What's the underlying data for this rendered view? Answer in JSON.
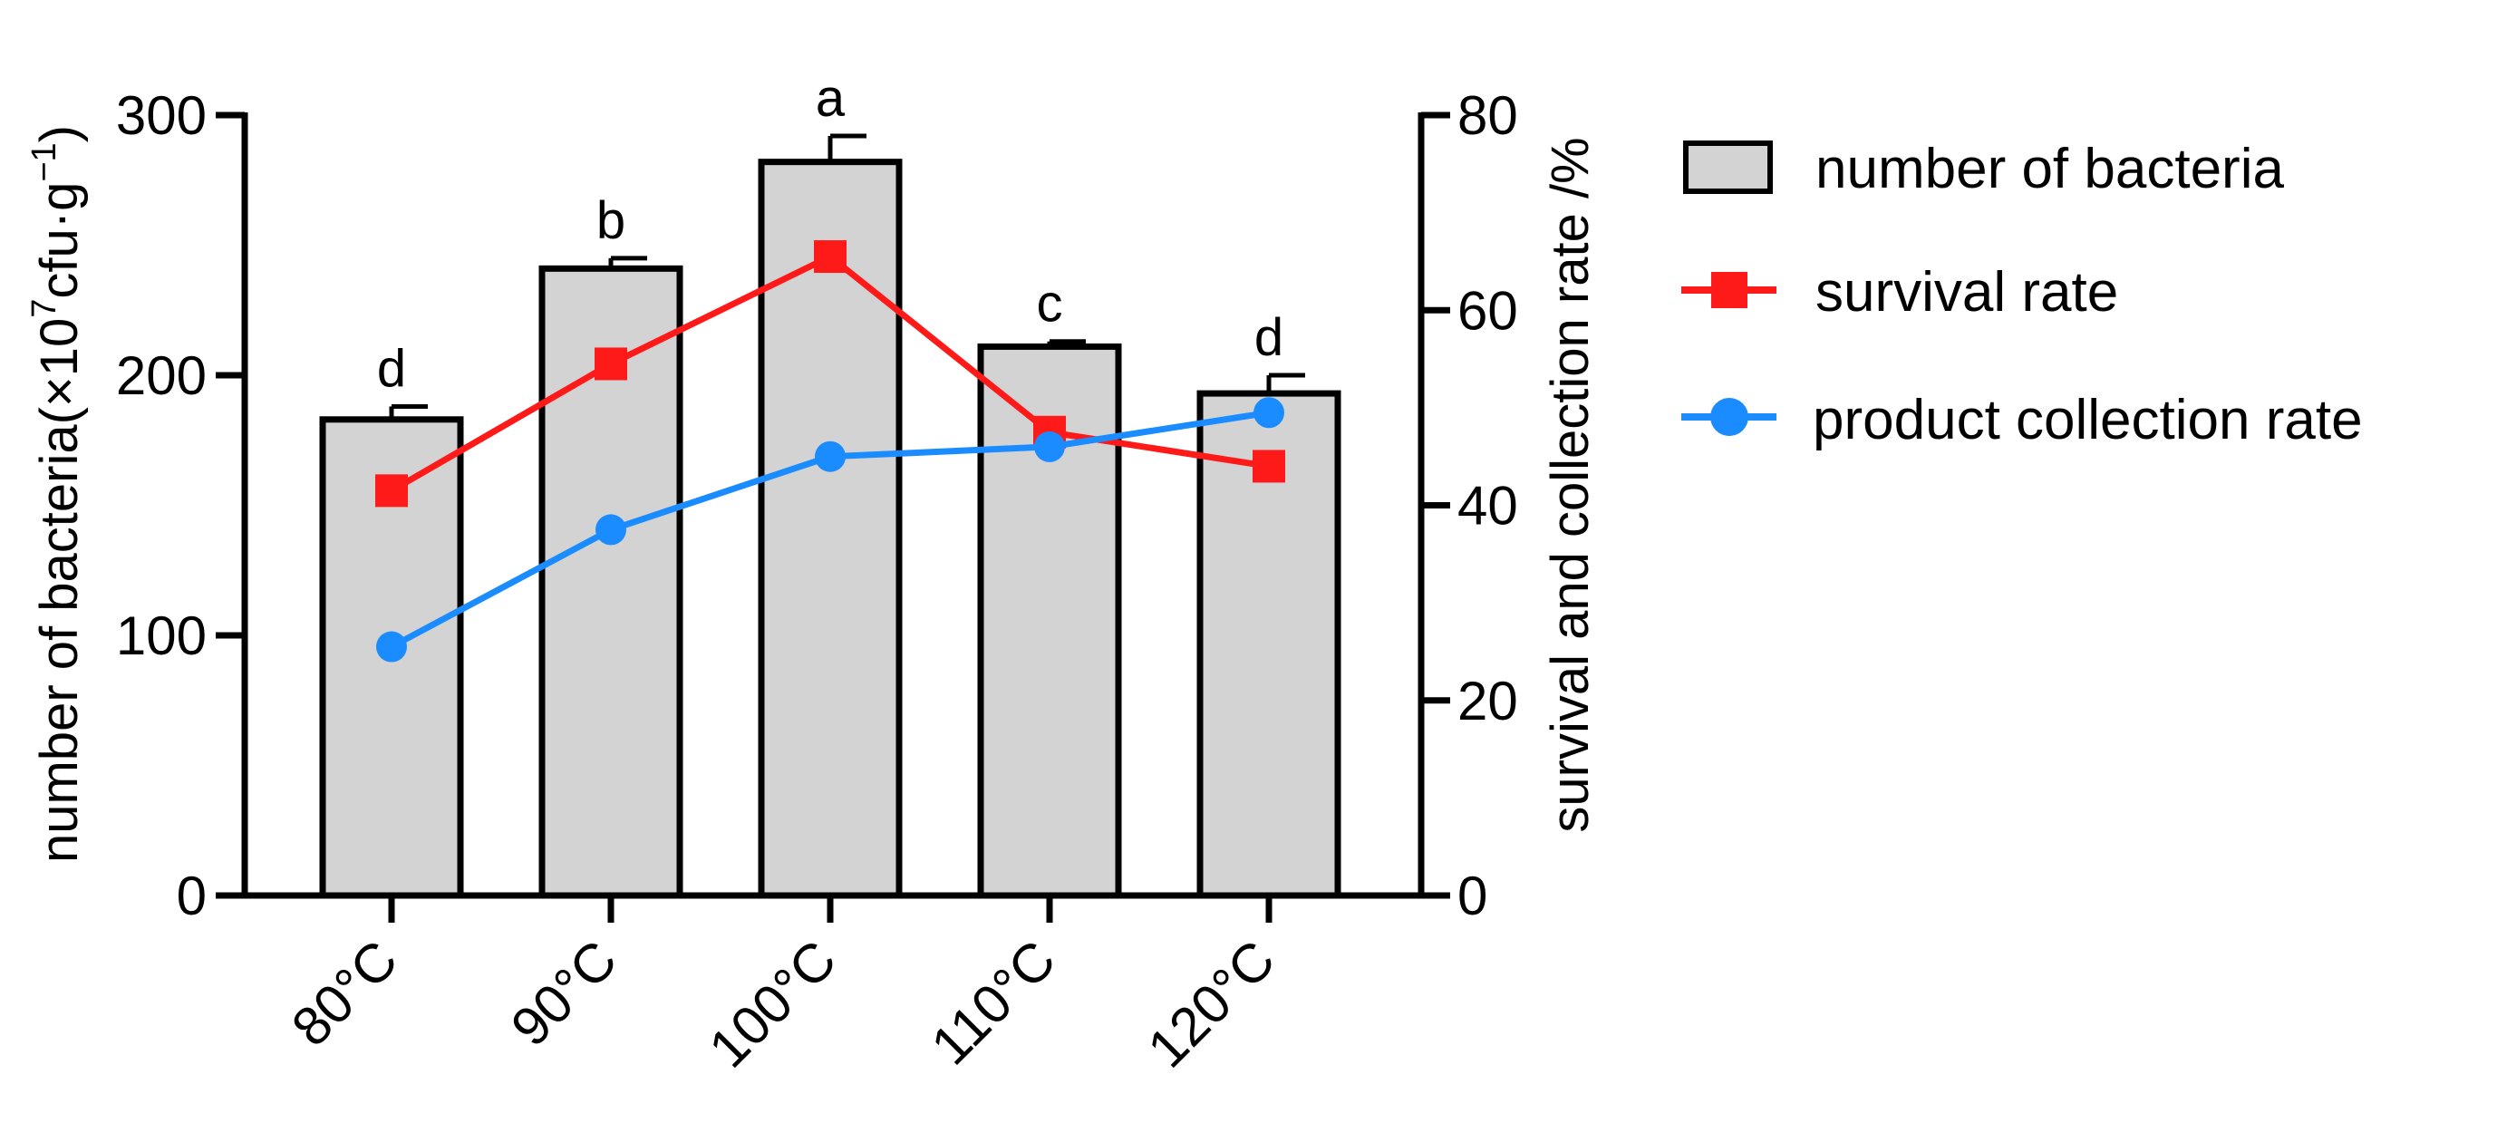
{
  "chart_data": {
    "type": "bar",
    "categories": [
      "80°C",
      "90°C",
      "100°C",
      "110°C",
      "120°C"
    ],
    "series": [
      {
        "name": "number of bacteria",
        "type": "bar",
        "axis": "left",
        "values": [
          183,
          241,
          282,
          211,
          193
        ],
        "errors": [
          5,
          4,
          10,
          2,
          7
        ],
        "significance": [
          "d",
          "b",
          "a",
          "c",
          "d"
        ],
        "color": "#d3d3d3"
      },
      {
        "name": "survival rate",
        "type": "line",
        "marker": "square",
        "axis": "right",
        "values": [
          41.5,
          54.5,
          65.5,
          47.5,
          44
        ],
        "color": "#ff1a1a"
      },
      {
        "name": "product collection rate",
        "type": "line",
        "marker": "circle",
        "axis": "right",
        "values": [
          25.5,
          37.5,
          45,
          46,
          49.5
        ],
        "color": "#1a8cff"
      }
    ],
    "ylabel_left": "number of bacteria(×10⁷cfu·g⁻¹)",
    "ylabel_left_parts": {
      "main": "number of bacteria(×10",
      "exp1": "7",
      "mid": "cfu·g",
      "exp2": "−1",
      "end": ")"
    },
    "ylabel_right": "survival and collection rate /%",
    "ylim_left": [
      0,
      300
    ],
    "yticks_left": [
      "0",
      "100",
      "200",
      "300"
    ],
    "ylim_right": [
      0,
      80
    ],
    "yticks_right": [
      "0",
      "20",
      "40",
      "60",
      "80"
    ],
    "legend_position": "right",
    "grid": false
  }
}
